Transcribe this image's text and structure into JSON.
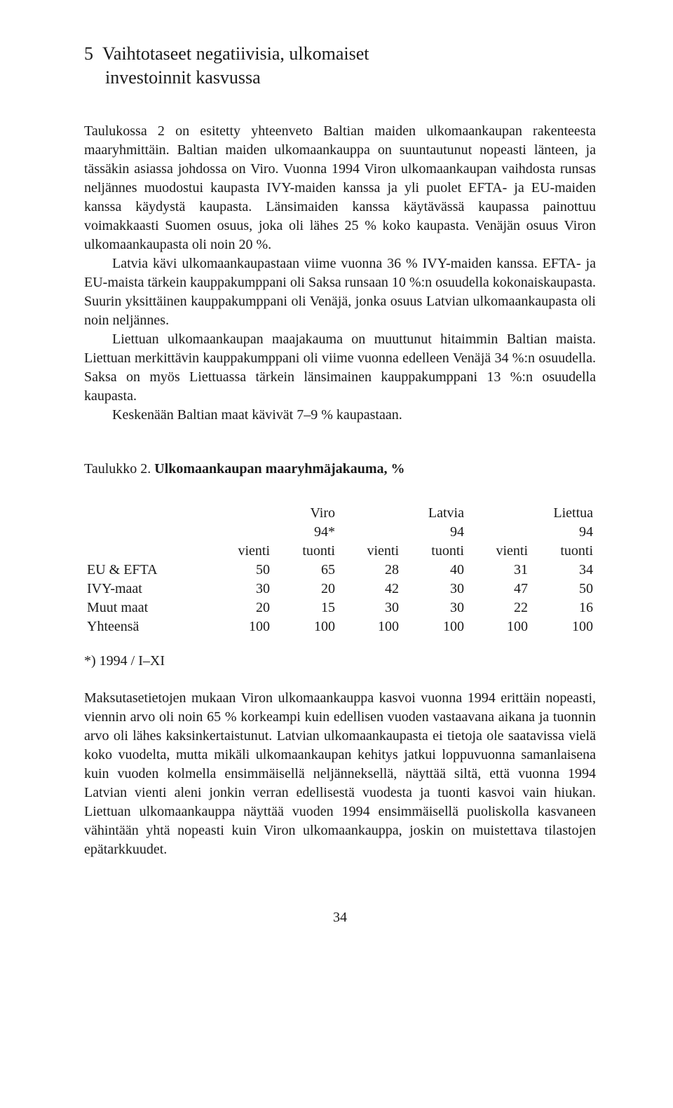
{
  "section": {
    "number": "5",
    "title_line1": "Vaihtotaseet negatiivisia, ulkomaiset",
    "title_line2": "investoinnit kasvussa"
  },
  "paragraphs": {
    "p1a": "Taulukossa 2 on esitetty yhteenveto Baltian maiden ulkomaankaupan rakenteesta maaryhmittäin. Baltian maiden ulkomaankauppa on suuntautunut nopeasti länteen, ja tässäkin asiassa johdossa on Viro. Vuonna 1994 Viron ulkomaankaupan vaihdosta runsas neljännes muodostui kaupasta IVY-maiden kanssa ja yli puolet EFTA- ja EU-maiden kanssa käydystä kaupasta. Länsimaiden kanssa käytävässä kaupassa painottuu voimakkaasti Suomen osuus, joka oli lähes 25 % koko kaupasta. Venäjän osuus Viron ulkomaankaupasta oli noin 20 %.",
    "p1b": "Latvia kävi ulkomaankaupastaan viime vuonna 36 % IVY-maiden kanssa. EFTA- ja EU-maista tärkein kauppakumppani oli Saksa runsaan 10 %:n osuudella kokonaiskaupasta. Suurin yksittäinen kauppakumppani oli Venäjä, jonka osuus Latvian ulkomaankaupasta oli noin neljännes.",
    "p1c": "Liettuan ulkomaankaupan maajakauma on muuttunut hitaimmin Baltian maista. Liettuan merkittävin kauppakumppani oli viime vuonna edelleen Venäjä 34 %:n osuudella. Saksa on myös Liettuassa tärkein länsimainen kauppakumppani 13 %:n osuudella kaupasta.",
    "p1d": "Keskenään Baltian maat kävivät 7–9 % kaupastaan.",
    "p2": "Maksutasetietojen mukaan Viron ulkomaankauppa kasvoi vuonna 1994 erittäin nopeasti, viennin arvo oli noin 65 % korkeampi kuin edellisen vuoden vastaavana aikana ja tuonnin arvo oli lähes kaksinkertaistunut. Latvian ulkomaankaupasta ei tietoja ole saatavissa vielä koko vuodelta, mutta mikäli ulkomaankaupan kehitys jatkui loppuvuonna samanlaisena kuin vuoden kolmella ensimmäisellä neljänneksellä, näyttää siltä, että vuonna 1994 Latvian vienti aleni jonkin verran edellisestä vuodesta ja tuonti kasvoi vain hiukan. Liettuan ulkomaankauppa näyttää vuoden 1994 ensimmäisellä puoliskolla kasvaneen vähintään yhtä nopeasti kuin Viron ulkomaankauppa, joskin on muistettava tilastojen epätarkkuudet."
  },
  "table": {
    "caption_prefix": "Taulukko 2. ",
    "caption_bold": "Ulkomaankaupan maaryhmäjakauma, %",
    "countries": [
      "Viro",
      "Latvia",
      "Liettua"
    ],
    "years": [
      "94*",
      "94",
      "94"
    ],
    "subcols": [
      "vienti",
      "tuonti"
    ],
    "rows": [
      {
        "label": "EU & EFTA",
        "values": [
          "50",
          "65",
          "28",
          "40",
          "31",
          "34"
        ]
      },
      {
        "label": "IVY-maat",
        "values": [
          "30",
          "20",
          "42",
          "30",
          "47",
          "50"
        ]
      },
      {
        "label": "Muut maat",
        "values": [
          "20",
          "15",
          "30",
          "30",
          "22",
          "16"
        ]
      },
      {
        "label": "Yhteensä",
        "values": [
          "100",
          "100",
          "100",
          "100",
          "100",
          "100"
        ]
      }
    ],
    "footnote": "*) 1994 / I–XI"
  },
  "pageno": "34"
}
